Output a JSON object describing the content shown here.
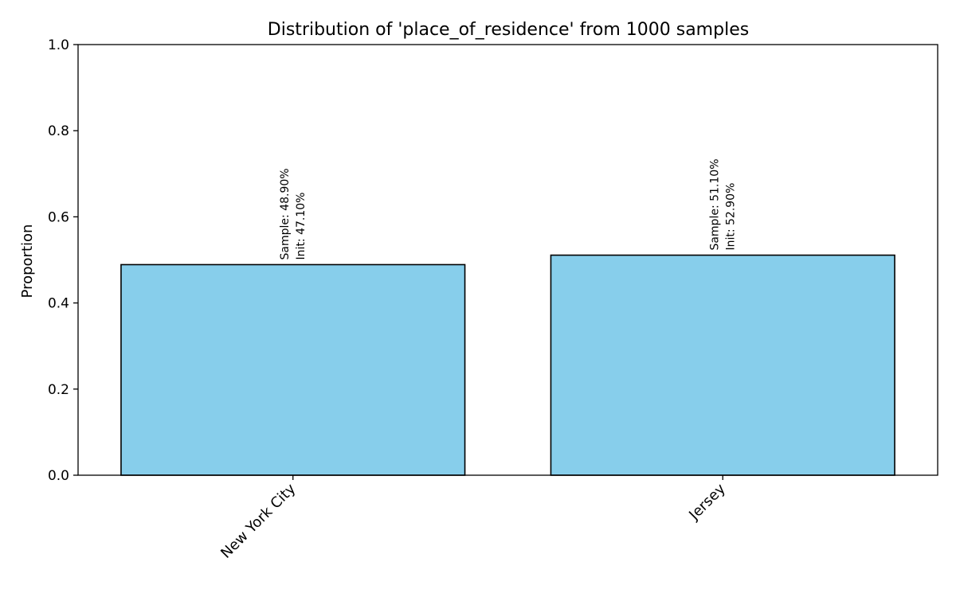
{
  "chart_data": {
    "type": "bar",
    "title": "Distribution of 'place_of_residence' from 1000 samples",
    "xlabel": "",
    "ylabel": "Proportion",
    "ylim": [
      0,
      1.0
    ],
    "yticks": [
      "0.0",
      "0.2",
      "0.4",
      "0.6",
      "0.8",
      "1.0"
    ],
    "categories": [
      "New York City",
      "Jersey"
    ],
    "values": [
      0.489,
      0.511
    ],
    "bar_labels": [
      [
        "Sample: 48.90%",
        "Init: 47.10%"
      ],
      [
        "Sample: 51.10%",
        "Init: 52.90%"
      ]
    ],
    "bar_color": "#87CEEB",
    "edge_color": "#000000",
    "grid": false,
    "legend": "none"
  }
}
